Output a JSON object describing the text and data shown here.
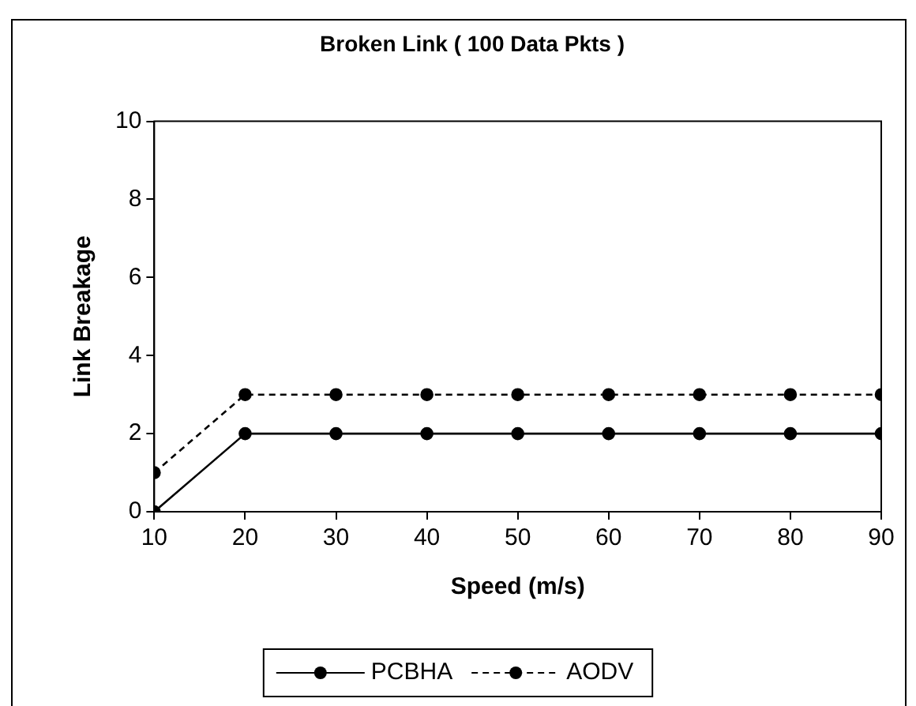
{
  "chart_data": {
    "type": "line",
    "title": "Broken Link ( 100 Data Pkts )",
    "xlabel": "Speed (m/s)",
    "ylabel": "Link Breakage",
    "x": [
      10,
      20,
      30,
      40,
      50,
      60,
      70,
      80,
      90
    ],
    "series": [
      {
        "name": "PCBHA",
        "color": "#000000",
        "line_style": "solid",
        "values": [
          0,
          2,
          2,
          2,
          2,
          2,
          2,
          2,
          2
        ]
      },
      {
        "name": "AODV",
        "color": "#000000",
        "line_style": "dashed",
        "values": [
          1,
          3,
          3,
          3,
          3,
          3,
          3,
          3,
          3
        ]
      }
    ],
    "xlim": [
      10,
      90
    ],
    "xticks": [
      10,
      20,
      30,
      40,
      50,
      60,
      70,
      80,
      90
    ],
    "ylim": [
      0,
      10
    ],
    "yticks": [
      0,
      2,
      4,
      6,
      8,
      10
    ],
    "grid": false,
    "legend": "bottom",
    "marker": "circle"
  }
}
